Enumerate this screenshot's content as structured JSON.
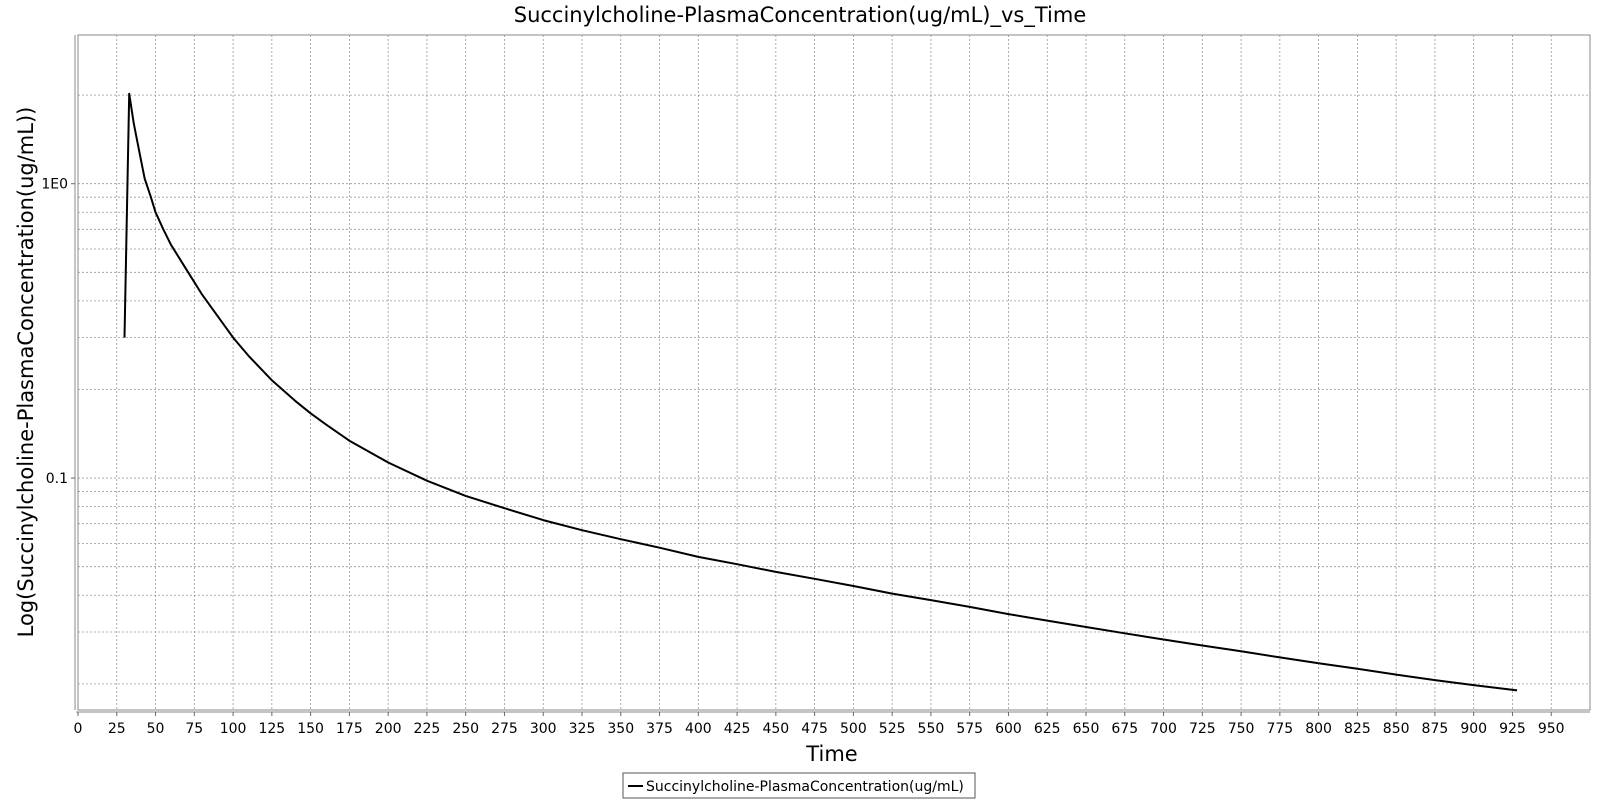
{
  "chart_data": {
    "type": "line",
    "title": "Succinylcholine-PlasmaConcentration(ug/mL)_vs_Time",
    "xlabel": "Time",
    "ylabel": "Log(Succinylcholine-PlasmaConcentration(ug/mL))",
    "y_scale": "log",
    "xlim": [
      0,
      975
    ],
    "ylim": [
      0.0163,
      3.2
    ],
    "x_ticks": [
      0,
      25,
      50,
      75,
      100,
      125,
      150,
      175,
      200,
      225,
      250,
      275,
      300,
      325,
      350,
      375,
      400,
      425,
      450,
      475,
      500,
      525,
      550,
      575,
      600,
      625,
      650,
      675,
      700,
      725,
      750,
      775,
      800,
      825,
      850,
      875,
      900,
      925,
      950
    ],
    "x_tick_labels": [
      "0",
      "25",
      "50",
      "75",
      "100",
      "125",
      "150",
      "175",
      "200",
      "225",
      "250",
      "275",
      "300",
      "325",
      "350",
      "375",
      "400",
      "425",
      "450",
      "475",
      "500",
      "525",
      "550",
      "575",
      "600",
      "625",
      "650",
      "675",
      "700",
      "725",
      "750",
      "775",
      "800",
      "825",
      "850",
      "875",
      "900",
      "925",
      "950"
    ],
    "y_major_ticks": [
      0.1,
      1
    ],
    "y_tick_labels": [
      "0.1",
      "1E0"
    ],
    "y_grid_lines": [
      0.02,
      0.03,
      0.04,
      0.05,
      0.06,
      0.07,
      0.08,
      0.09,
      0.1,
      0.2,
      0.3,
      0.4,
      0.5,
      0.6,
      0.7,
      0.8,
      0.9,
      1,
      2
    ],
    "grid": true,
    "legend": {
      "position": "bottom-center",
      "entries": [
        "Succinylcholine-PlasmaConcentration(ug/mL)"
      ]
    },
    "series": [
      {
        "name": "Succinylcholine-PlasmaConcentration(ug/mL)",
        "color": "#000000",
        "x": [
          30,
          33,
          36,
          40,
          43,
          47,
          50,
          55,
          60,
          70,
          80,
          90,
          100,
          110,
          125,
          140,
          150,
          160,
          175,
          190,
          200,
          225,
          250,
          275,
          300,
          325,
          350,
          375,
          400,
          425,
          450,
          475,
          500,
          525,
          550,
          575,
          600,
          625,
          650,
          675,
          700,
          725,
          750,
          775,
          800,
          825,
          850,
          875,
          900,
          928
        ],
        "values": [
          0.3,
          2.02,
          1.6,
          1.25,
          1.04,
          0.9,
          0.8,
          0.7,
          0.62,
          0.51,
          0.42,
          0.355,
          0.3,
          0.26,
          0.215,
          0.183,
          0.166,
          0.152,
          0.134,
          0.121,
          0.113,
          0.098,
          0.087,
          0.079,
          0.072,
          0.0665,
          0.062,
          0.058,
          0.054,
          0.051,
          0.048,
          0.0455,
          0.043,
          0.0405,
          0.0385,
          0.0365,
          0.0345,
          0.0328,
          0.0312,
          0.0297,
          0.0283,
          0.027,
          0.0258,
          0.0246,
          0.0235,
          0.0225,
          0.0215,
          0.0206,
          0.0198,
          0.019
        ]
      }
    ]
  }
}
